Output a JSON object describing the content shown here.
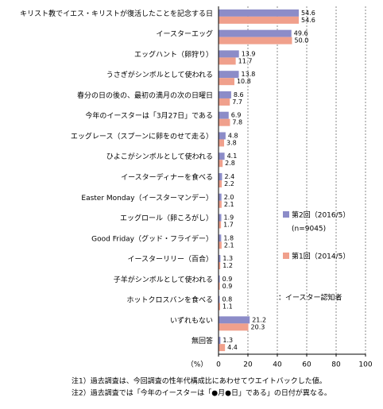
{
  "chart_data": {
    "type": "hbar",
    "categories": [
      "キリスト教でイエス・キリストが復活したことを記念する日",
      "イースターエッグ",
      "エッグハント（卵狩り）",
      "うさぎがシンボルとして使われる",
      "春分の日の後の、最初の満月の次の日曜日",
      "今年のイースターは「3月27日」である",
      "エッグレース（スプーンに卵をのせて走る）",
      "ひよこがシンボルとして使われる",
      "イースターディナーを食べる",
      "Easter Monday（イースターマンデー）",
      "エッグロール（卵ころがし）",
      "Good Friday（グッド・フライデー）",
      "イースターリリー（百合）",
      "子羊がシンボルとして使われる",
      "ホットクロスバンを食べる",
      "いずれもない",
      "無回答"
    ],
    "series": [
      {
        "name": "第2回（2016/5）",
        "sample": "(n=9045)",
        "color": "#8c8cc8",
        "values": [
          54.6,
          49.6,
          13.9,
          13.8,
          8.6,
          6.9,
          4.8,
          4.1,
          2.4,
          2.0,
          1.9,
          1.8,
          1.3,
          0.9,
          0.8,
          21.2,
          1.3
        ],
        "value_labels": [
          "54.6",
          "49.6",
          "13.9",
          "13.8",
          "8.6",
          "6.9",
          "4.8",
          "4.1",
          "2.4",
          "2.0",
          "1.9",
          "1.8",
          "1.3",
          "0.9",
          "0.8",
          "21.2",
          "1.3"
        ]
      },
      {
        "name": "第1回（2014/5）",
        "color": "#f0a08c",
        "values": [
          54.6,
          50.0,
          11.7,
          10.8,
          7.7,
          7.8,
          3.8,
          2.8,
          2.2,
          2.1,
          1.7,
          2.1,
          1.2,
          0.9,
          1.1,
          20.3,
          4.4
        ],
        "value_labels": [
          "54.6",
          "50.0",
          "11.7",
          "10.8",
          "7.7",
          "7.8",
          "3.8",
          "2.8",
          "2.2",
          "2.1",
          "1.7",
          "2.1",
          "1.2",
          "0.9",
          "1.1",
          "20.3",
          "4.4"
        ]
      }
    ],
    "legend_note": "：イースター認知者",
    "xlabel": "（%）",
    "xlim": [
      0,
      100
    ],
    "xticks": [
      0,
      20,
      40,
      60,
      80,
      100
    ],
    "grid": true,
    "notes": [
      "注1）過去調査は、今回調査の性年代構成比にあわせてウエイトバックした値。",
      "注2）過去調査では「今年のイースターは「●月●日」である」の日付が異なる。"
    ]
  }
}
